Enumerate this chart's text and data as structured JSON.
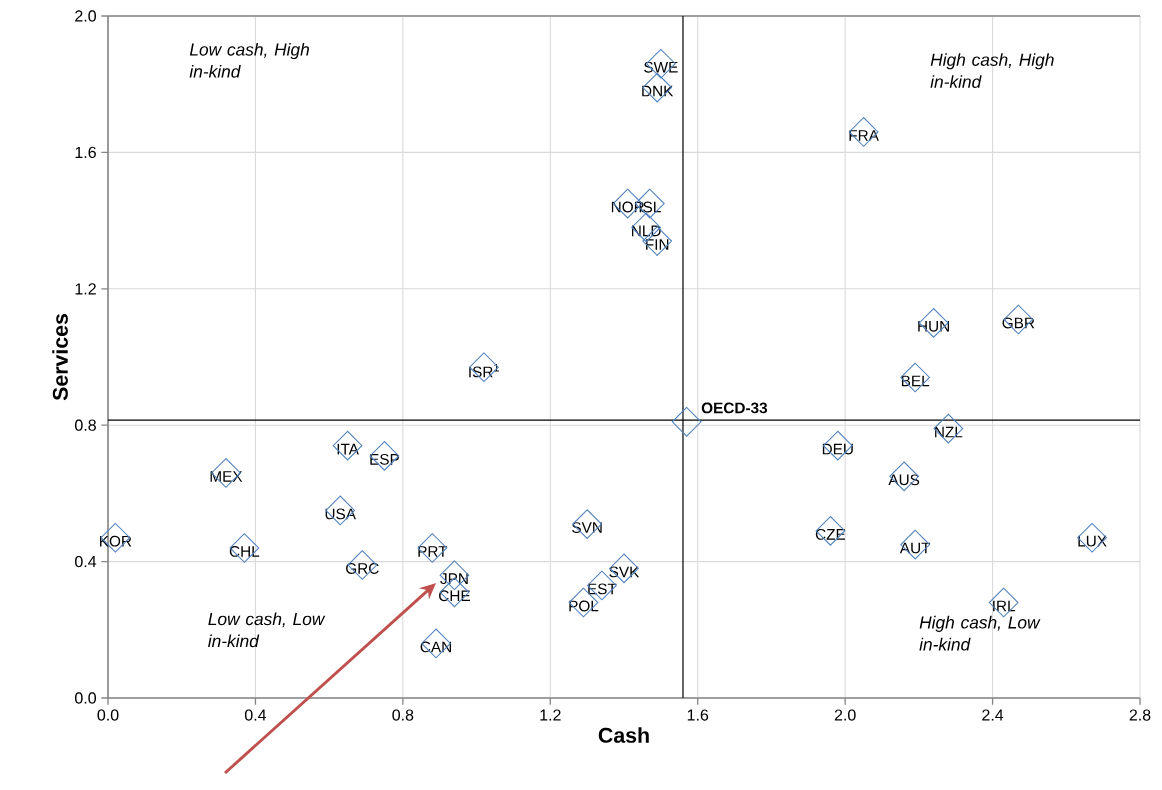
{
  "chart_data": {
    "type": "scatter",
    "xlabel": "Cash",
    "ylabel": "Services",
    "xlim": [
      0,
      2.8
    ],
    "xticks": [
      {
        "value": 0,
        "label": "0.0"
      },
      0.4,
      0.8,
      1.2,
      1.6,
      {
        "value": 2,
        "label": "2.0"
      },
      2.4,
      2.8
    ],
    "ylim": [
      0,
      2
    ],
    "yticks": [
      {
        "value": 0,
        "label": "0.0"
      },
      0.4,
      0.8,
      1.2,
      1.6,
      {
        "value": 2,
        "label": "2.0"
      }
    ],
    "grid": true,
    "marker": "diamond",
    "color": "#4f81bd",
    "x": [
      0.02,
      0.32,
      0.37,
      0.65,
      0.75,
      0.63,
      0.69,
      0.88,
      0.94,
      0.94,
      0.89,
      1.02,
      1.3,
      1.4,
      1.34,
      1.29,
      1.57,
      1.41,
      1.47,
      1.46,
      1.49,
      1.5,
      1.49,
      2.05,
      2.24,
      2.47,
      2.19,
      2.28,
      1.98,
      2.16,
      1.96,
      2.19,
      2.67,
      2.43
    ],
    "values": [
      0.47,
      0.66,
      0.44,
      0.74,
      0.71,
      0.55,
      0.39,
      0.44,
      0.36,
      0.31,
      0.16,
      0.97,
      0.51,
      0.38,
      0.33,
      0.28,
      0.81,
      1.45,
      1.45,
      1.38,
      1.34,
      1.86,
      1.79,
      1.66,
      1.1,
      1.11,
      0.94,
      0.79,
      0.74,
      0.65,
      0.49,
      0.45,
      0.47,
      0.28
    ],
    "ref_lines": [
      {
        "axis": "x",
        "value": 1.56,
        "color": "#000000"
      },
      {
        "axis": "y",
        "value": 0.815,
        "color": "#000000"
      }
    ],
    "annotations": [
      {
        "text": "KOR",
        "x": 0.02,
        "y": 0.47
      },
      {
        "text": "MEX",
        "x": 0.32,
        "y": 0.66
      },
      {
        "text": "CHL",
        "x": 0.37,
        "y": 0.44
      },
      {
        "text": "ITA",
        "x": 0.65,
        "y": 0.74
      },
      {
        "text": "ESP",
        "x": 0.75,
        "y": 0.71
      },
      {
        "text": "USA",
        "x": 0.63,
        "y": 0.55
      },
      {
        "text": "GRC",
        "x": 0.69,
        "y": 0.39
      },
      {
        "text": "PRT",
        "x": 0.88,
        "y": 0.44
      },
      {
        "text": "JPN",
        "x": 0.94,
        "y": 0.36
      },
      {
        "text": "CHE",
        "x": 0.94,
        "y": 0.31
      },
      {
        "text": "CAN",
        "x": 0.89,
        "y": 0.16
      },
      {
        "text": "ISR$^{1}$",
        "x": 1.02,
        "y": 0.97
      },
      {
        "text": "SVN",
        "x": 1.3,
        "y": 0.51
      },
      {
        "text": "SVK",
        "x": 1.4,
        "y": 0.38
      },
      {
        "text": "EST",
        "x": 1.34,
        "y": 0.33
      },
      {
        "text": "POL",
        "x": 1.29,
        "y": 0.28
      },
      {
        "text": "**OECD-33**",
        "x": 1.57,
        "y": 0.81
      },
      {
        "text": "NOR",
        "x": 1.41,
        "y": 1.45
      },
      {
        "text": "ISL",
        "x": 1.47,
        "y": 1.45
      },
      {
        "text": "NLD",
        "x": 1.46,
        "y": 1.38
      },
      {
        "text": "FIN",
        "x": 1.49,
        "y": 1.34
      },
      {
        "text": "SWE",
        "x": 1.5,
        "y": 1.86
      },
      {
        "text": "DNK",
        "x": 1.49,
        "y": 1.79
      },
      {
        "text": "FRA",
        "x": 2.05,
        "y": 1.66
      },
      {
        "text": "HUN",
        "x": 2.24,
        "y": 1.1
      },
      {
        "text": "GBR",
        "x": 2.47,
        "y": 1.11
      },
      {
        "text": "BEL",
        "x": 2.19,
        "y": 0.94
      },
      {
        "text": "NZL",
        "x": 2.28,
        "y": 0.79
      },
      {
        "text": "DEU",
        "x": 1.98,
        "y": 0.74
      },
      {
        "text": "AUS",
        "x": 2.16,
        "y": 0.65
      },
      {
        "text": "CZE",
        "x": 1.96,
        "y": 0.49
      },
      {
        "text": "AUT",
        "x": 2.19,
        "y": 0.45
      },
      {
        "text": "LUX",
        "x": 2.67,
        "y": 0.47
      },
      {
        "text": "IRL",
        "x": 2.43,
        "y": 0.28
      },
      "*Low cash, High in-kind*",
      "*High cash, High in-kind*",
      "*Low cash, Low in-kind*",
      "*High cash, Low in-kind*"
    ]
  }
}
